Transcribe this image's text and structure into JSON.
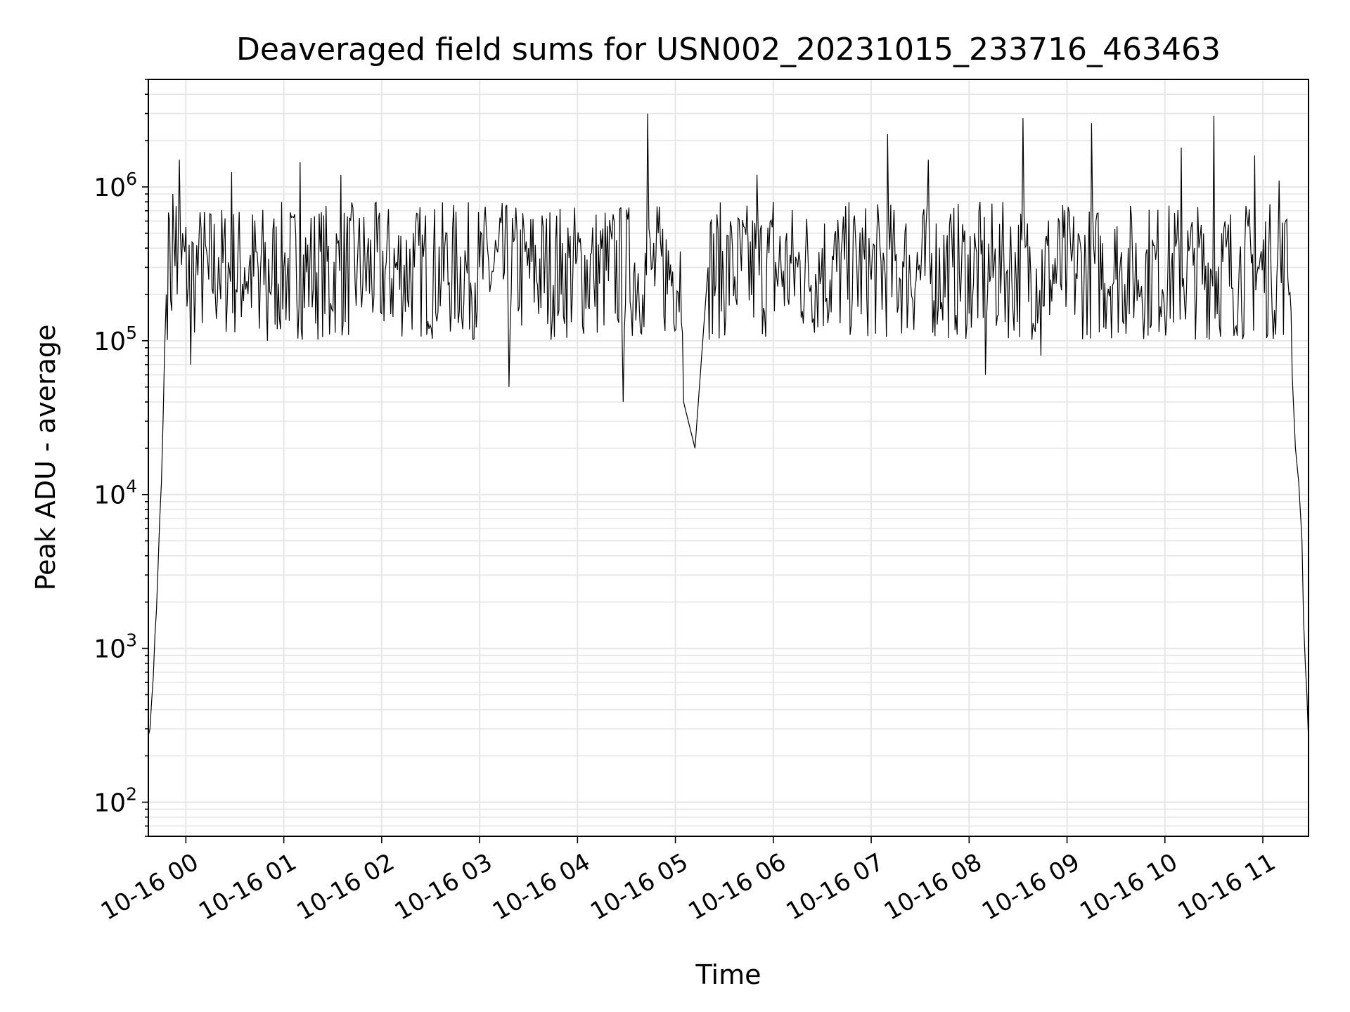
{
  "chart_data": {
    "type": "line",
    "title": "Deaveraged field sums for USN002_20231015_233716_463463",
    "xlabel": "Time",
    "ylabel": "Peak ADU - average",
    "yscale": "log",
    "ylim": [
      60,
      5000000
    ],
    "xlim": [
      "2023-10-15 23:37",
      "2023-10-16 11:28"
    ],
    "x_ticks": [
      {
        "t": "2023-10-16 00:00",
        "label": "10-16 00"
      },
      {
        "t": "2023-10-16 01:00",
        "label": "10-16 01"
      },
      {
        "t": "2023-10-16 02:00",
        "label": "10-16 02"
      },
      {
        "t": "2023-10-16 03:00",
        "label": "10-16 03"
      },
      {
        "t": "2023-10-16 04:00",
        "label": "10-16 04"
      },
      {
        "t": "2023-10-16 05:00",
        "label": "10-16 05"
      },
      {
        "t": "2023-10-16 06:00",
        "label": "10-16 06"
      },
      {
        "t": "2023-10-16 07:00",
        "label": "10-16 07"
      },
      {
        "t": "2023-10-16 08:00",
        "label": "10-16 08"
      },
      {
        "t": "2023-10-16 09:00",
        "label": "10-16 09"
      },
      {
        "t": "2023-10-16 10:00",
        "label": "10-16 10"
      },
      {
        "t": "2023-10-16 11:00",
        "label": "10-16 11"
      }
    ],
    "y_ticks": [
      {
        "value": 100,
        "base": "10",
        "exp": "2"
      },
      {
        "value": 1000,
        "base": "10",
        "exp": "3"
      },
      {
        "value": 10000,
        "base": "10",
        "exp": "4"
      },
      {
        "value": 100000,
        "base": "10",
        "exp": "5"
      },
      {
        "value": 1000000,
        "base": "10",
        "exp": "6"
      }
    ],
    "grid": true,
    "line_color": "#000000",
    "grid_color": "#e6e6e6",
    "series": [
      {
        "x": [
          "2023-10-15 23:37",
          "2023-10-15 23:38",
          "2023-10-15 23:39",
          "2023-10-15 23:40",
          "2023-10-15 23:41",
          "2023-10-15 23:42",
          "2023-10-15 23:43",
          "2023-10-15 23:44",
          "2023-10-15 23:45",
          "2023-10-15 23:46",
          "2023-10-15 23:47",
          "2023-10-15 23:48",
          "2023-10-15 23:50",
          "2023-10-15 23:52",
          "2023-10-15 23:54",
          "2023-10-15 23:56",
          "2023-10-15 23:58",
          "2023-10-16 00:02",
          "2023-10-16 00:03",
          "2023-10-16 00:06",
          "2023-10-16 00:08",
          "2023-10-16 00:14",
          "2023-10-16 00:20",
          "2023-10-16 00:28",
          "2023-10-16 00:36",
          "2023-10-16 00:45",
          "2023-10-16 00:50",
          "2023-10-16 01:00",
          "2023-10-16 01:10",
          "2023-10-16 01:16",
          "2023-10-16 01:28",
          "2023-10-16 01:35",
          "2023-10-16 01:45",
          "2023-10-16 02:00",
          "2023-10-16 02:20",
          "2023-10-16 02:40",
          "2023-10-16 03:00",
          "2023-10-16 03:18",
          "2023-10-16 03:30",
          "2023-10-16 03:50",
          "2023-10-16 04:10",
          "2023-10-16 04:28",
          "2023-10-16 04:40",
          "2023-10-16 04:43",
          "2023-10-16 04:46",
          "2023-10-16 04:55",
          "2023-10-16 05:05",
          "2023-10-16 05:12",
          "2023-10-16 05:20",
          "2023-10-16 05:35",
          "2023-10-16 05:50",
          "2023-10-16 06:00",
          "2023-10-16 06:15",
          "2023-10-16 06:30",
          "2023-10-16 06:45",
          "2023-10-16 07:00",
          "2023-10-16 07:10",
          "2023-10-16 07:20",
          "2023-10-16 07:35",
          "2023-10-16 07:50",
          "2023-10-16 08:00",
          "2023-10-16 08:10",
          "2023-10-16 08:20",
          "2023-10-16 08:33",
          "2023-10-16 08:44",
          "2023-10-16 08:50",
          "2023-10-16 09:00",
          "2023-10-16 09:15",
          "2023-10-16 09:30",
          "2023-10-16 09:45",
          "2023-10-16 09:55",
          "2023-10-16 10:10",
          "2023-10-16 10:18",
          "2023-10-16 10:30",
          "2023-10-16 10:45",
          "2023-10-16 10:55",
          "2023-10-16 11:05",
          "2023-10-16 11:10",
          "2023-10-16 11:14",
          "2023-10-16 11:16",
          "2023-10-16 11:18",
          "2023-10-16 11:20",
          "2023-10-16 11:22",
          "2023-10-16 11:24",
          "2023-10-16 11:25",
          "2023-10-16 11:26",
          "2023-10-16 11:27",
          "2023-10-16 11:28"
        ],
        "values": [
          270,
          300,
          450,
          650,
          1200,
          1800,
          3500,
          7000,
          12000,
          30000,
          90000,
          200000,
          600000,
          900000,
          750000,
          1500000,
          500000,
          420000,
          70000,
          250000,
          450000,
          250000,
          350000,
          1250000,
          300000,
          120000,
          100000,
          300000,
          1450000,
          320000,
          110000,
          1200000,
          300000,
          150000,
          300000,
          500000,
          300000,
          50000,
          400000,
          200000,
          250000,
          40000,
          200000,
          3000000,
          300000,
          200000,
          40000,
          20000,
          300000,
          400000,
          1200000,
          800000,
          300000,
          400000,
          350000,
          250000,
          2200000,
          300000,
          1500000,
          300000,
          150000,
          60000,
          350000,
          2800000,
          80000,
          250000,
          300000,
          2600000,
          250000,
          200000,
          400000,
          1800000,
          400000,
          2900000,
          200000,
          1600000,
          300000,
          1100000,
          600000,
          200000,
          60000,
          20000,
          12000,
          5000,
          1500,
          800,
          500,
          250
        ]
      }
    ]
  }
}
